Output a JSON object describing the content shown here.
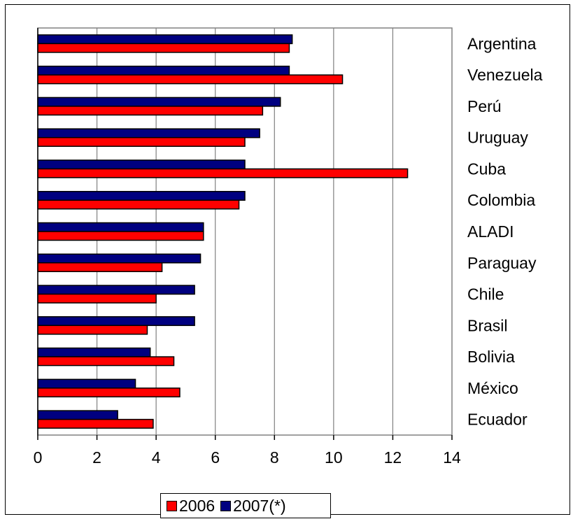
{
  "chart_data": {
    "type": "bar",
    "orientation": "horizontal",
    "categories": [
      "Argentina",
      "Venezuela",
      "Perú",
      "Uruguay",
      "Cuba",
      "Colombia",
      "ALADI",
      "Paraguay",
      "Chile",
      "Brasil",
      "Bolivia",
      "México",
      "Ecuador"
    ],
    "series": [
      {
        "name": "2006",
        "color": "#ff0000",
        "values": [
          8.5,
          10.3,
          7.6,
          7.0,
          12.5,
          6.8,
          5.6,
          4.2,
          4.0,
          3.7,
          4.6,
          4.8,
          3.9
        ]
      },
      {
        "name": "2007(*)",
        "color": "#000080",
        "values": [
          8.6,
          8.5,
          8.2,
          7.5,
          7.0,
          7.0,
          5.6,
          5.5,
          5.3,
          5.3,
          3.8,
          3.3,
          2.7
        ]
      }
    ],
    "xlim": [
      0,
      14
    ],
    "x_ticks": [
      0,
      2,
      4,
      6,
      8,
      10,
      12,
      14
    ],
    "x_tick_labels": [
      "0",
      "2",
      "4",
      "6",
      "8",
      "10",
      "12",
      "14"
    ],
    "grid": "vertical",
    "legend_position": "bottom",
    "category_label_position": "right",
    "title": "",
    "xlabel": "",
    "ylabel": ""
  }
}
